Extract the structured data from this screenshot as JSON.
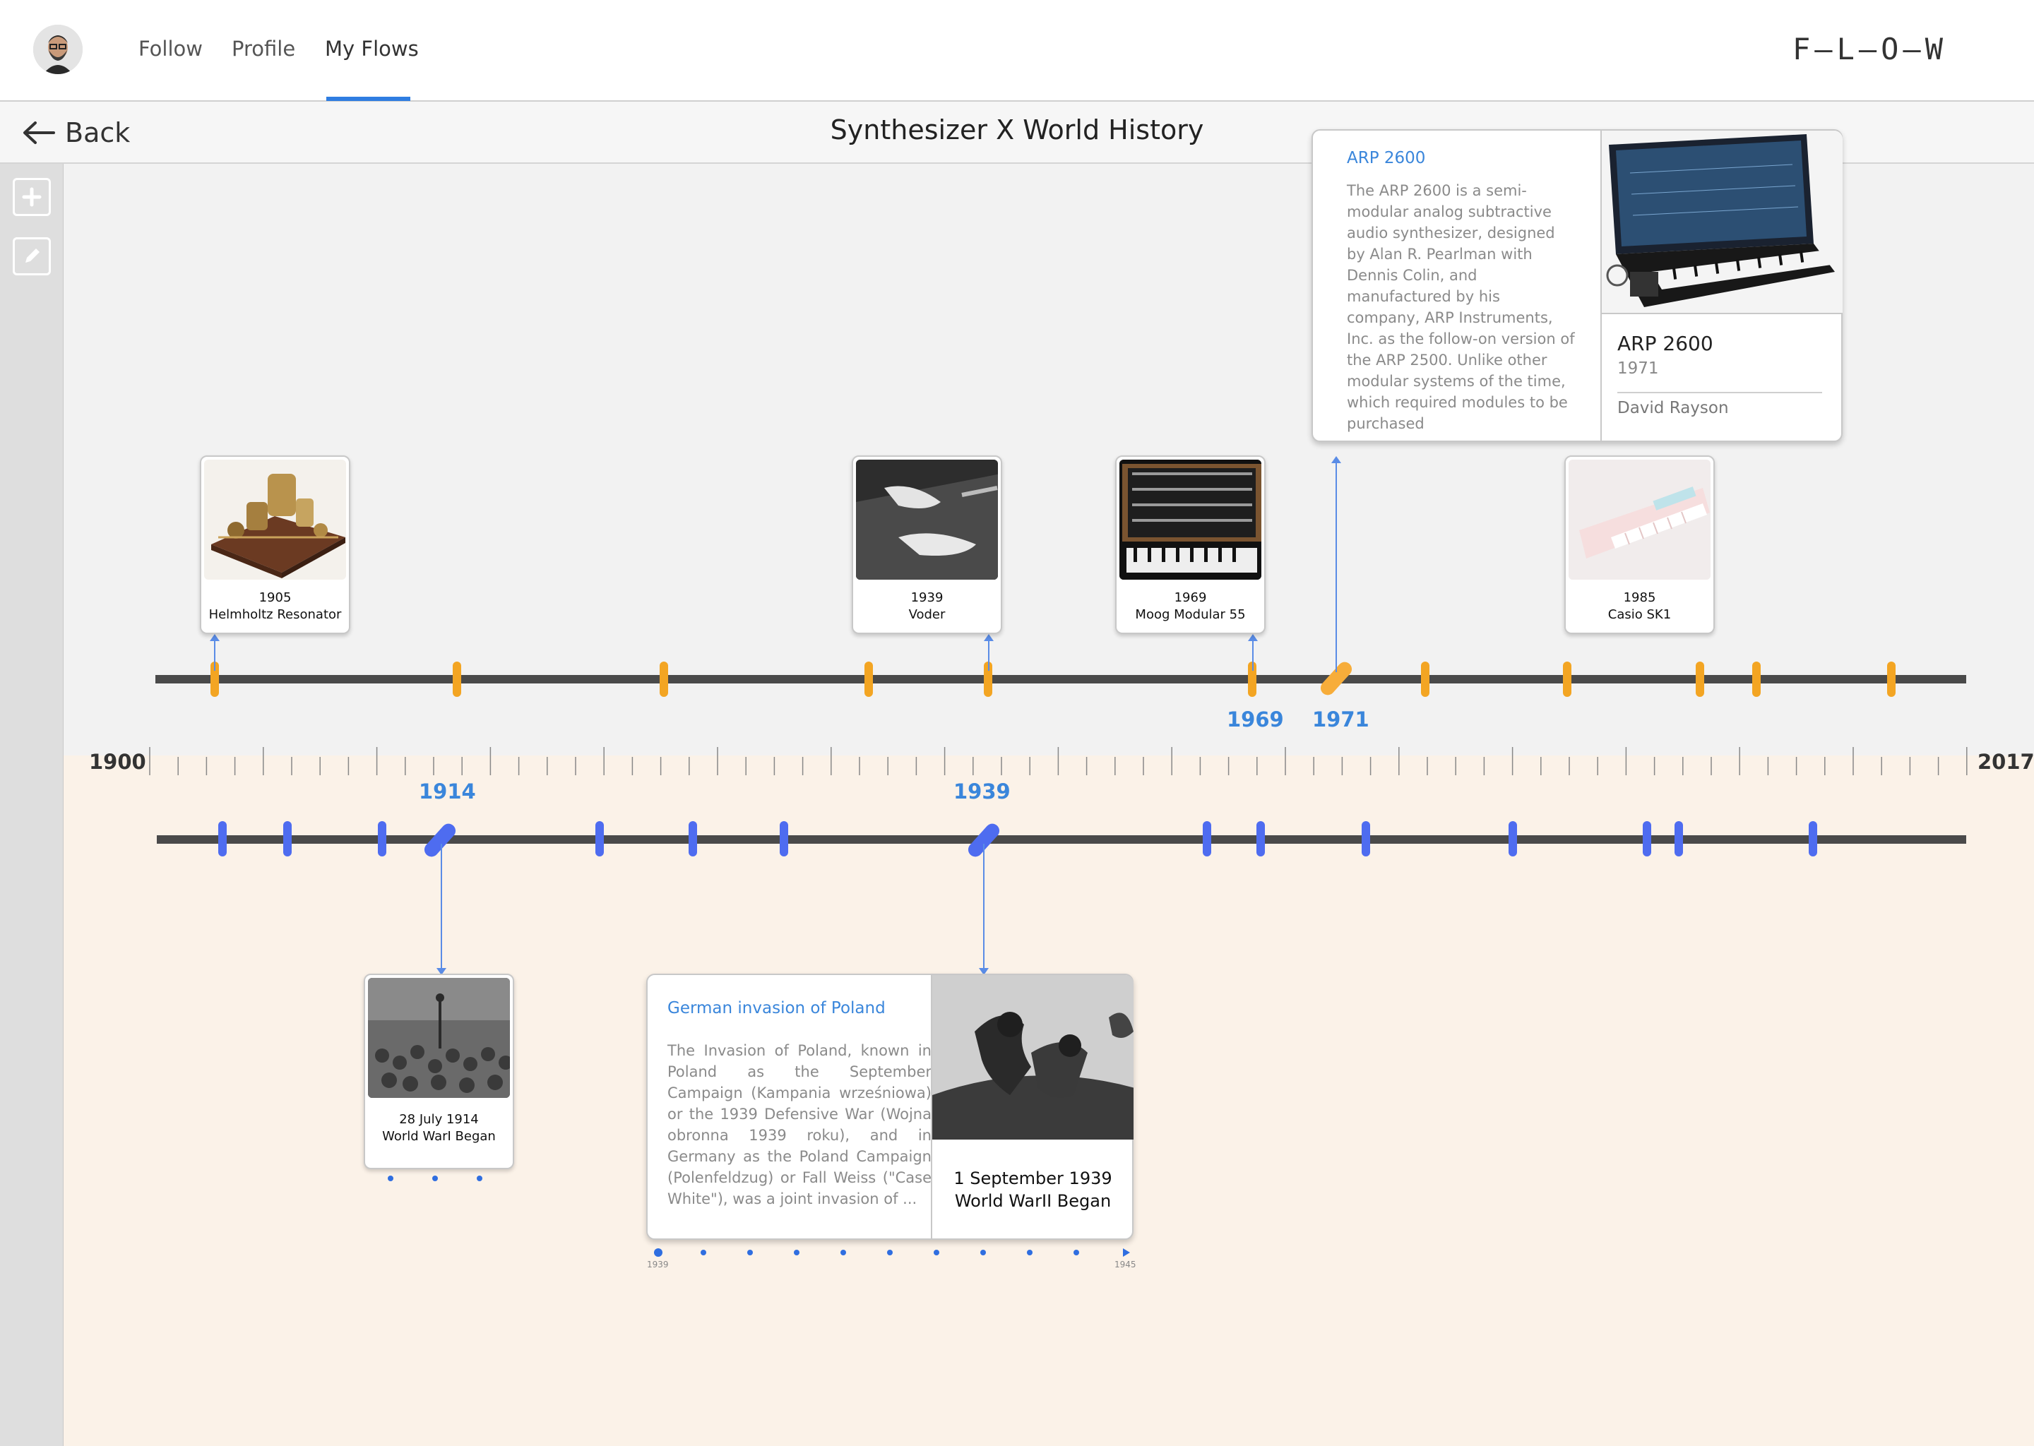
{
  "nav": {
    "items": [
      "Follow",
      "Profile",
      "My Flows"
    ],
    "active": "My Flows",
    "logo": "F—L—O—W"
  },
  "header": {
    "back_label": "Back",
    "title": "Synthesizer X World History"
  },
  "sidebar": {
    "buttons": [
      {
        "icon": "plus-icon"
      },
      {
        "icon": "pencil-icon"
      }
    ]
  },
  "timeline": {
    "start_year": "1900",
    "end_year": "2017",
    "upper_selected_labels": [
      "1969",
      "1971"
    ],
    "lower_selected_labels": [
      "1914",
      "1939"
    ]
  },
  "upper_cards": [
    {
      "year": "1905",
      "name": "Helmholtz Resonator"
    },
    {
      "year": "1939",
      "name": "Voder"
    },
    {
      "year": "1969",
      "name": "Moog Modular 55"
    },
    {
      "year": "1985",
      "name": "Casio SK1"
    }
  ],
  "arp_card": {
    "link_title": "ARP 2600",
    "description": "The ARP 2600 is a semi-modular analog subtractive audio synthesizer, designed by Alan R. Pearlman with Dennis Colin, and manufactured by his company, ARP Instruments, Inc. as the follow-on version of the ARP 2500. Unlike other modular systems of the time, which required modules to be purchased",
    "name": "ARP 2600",
    "year": "1971",
    "author": "David Rayson"
  },
  "lower_cards": [
    {
      "date": "28 July 1914",
      "name": "World WarI Began"
    }
  ],
  "poland_card": {
    "link_title": "German invasion of Poland",
    "description": "The Invasion of Poland, known in Poland as the September Campaign (Kampania wrześniowa) or the 1939 Defensive War (Wojna obronna 1939 roku), and in Germany as the Poland Campaign (Polenfeldzug) or Fall Weiss (\"Case White\"), was a joint invasion of ...",
    "date": "1 September 1939",
    "name": "World WarII Began",
    "range_start": "1939",
    "range_end": "1945"
  },
  "colors": {
    "accent_blue": "#3a86db",
    "marker_orange": "#f3a523",
    "marker_blue": "#4e6cf0",
    "upper_bg": "#f2f2f2",
    "lower_bg": "#fbf2e8"
  }
}
